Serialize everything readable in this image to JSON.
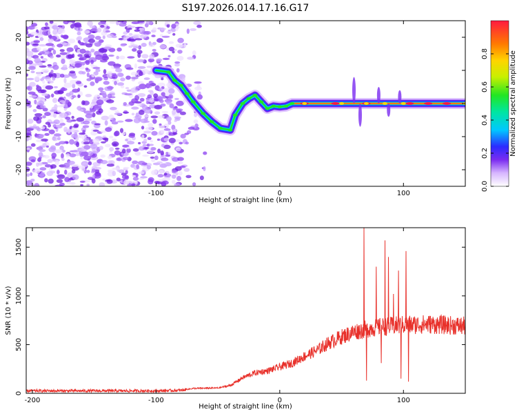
{
  "title": "S197.2026.014.17.16.G17",
  "colors": {
    "snr_line": "#e8302a",
    "axes": "#000000",
    "scatter_purple": "#7a2cf0"
  },
  "chart_data": [
    {
      "type": "heatmap",
      "name": "spectrogram",
      "xlabel": "Height of straight line (km)",
      "ylabel": "Frequency (Hz)",
      "xlim": [
        -205,
        150
      ],
      "ylim": [
        -25,
        25
      ],
      "xticks": [
        "-200",
        "-100",
        "0",
        "100"
      ],
      "yticks": [
        "-20",
        "-10",
        "0",
        "10",
        "20"
      ],
      "colorbar": {
        "label": "Normalized spectral amplitude",
        "range": [
          0,
          1
        ],
        "ticks": [
          "0.0",
          "0.2",
          "0.4",
          "0.6",
          "0.8"
        ]
      },
      "trace": [
        [
          -100,
          10
        ],
        [
          -90,
          9.5
        ],
        [
          -85,
          7
        ],
        [
          -80,
          5.5
        ],
        [
          -75,
          3
        ],
        [
          -70,
          0.5
        ],
        [
          -62,
          -3
        ],
        [
          -55,
          -5.5
        ],
        [
          -48,
          -7.5
        ],
        [
          -40,
          -8
        ],
        [
          -36,
          -3.5
        ],
        [
          -30,
          0
        ],
        [
          -25,
          1.5
        ],
        [
          -20,
          2.5
        ],
        [
          -15,
          0.5
        ],
        [
          -10,
          -1.5
        ],
        [
          -5,
          -0.8
        ],
        [
          0,
          -1
        ],
        [
          5,
          -0.8
        ],
        [
          10,
          0
        ],
        [
          20,
          0
        ],
        [
          50,
          0
        ],
        [
          70,
          0
        ],
        [
          85,
          0
        ],
        [
          100,
          0
        ],
        [
          150,
          0
        ]
      ]
    },
    {
      "type": "line",
      "name": "snr",
      "xlabel": "Height of straight line (km)",
      "ylabel": "SNR (10 * v/v)",
      "xlim": [
        -205,
        150
      ],
      "ylim": [
        0,
        1700
      ],
      "xticks": [
        "-200",
        "-100",
        "0",
        "100"
      ],
      "yticks": [
        "0",
        "500",
        "1000",
        "1500"
      ],
      "envelope": [
        [
          -205,
          25
        ],
        [
          -150,
          25
        ],
        [
          -100,
          25
        ],
        [
          -80,
          30
        ],
        [
          -70,
          50
        ],
        [
          -50,
          55
        ],
        [
          -40,
          80
        ],
        [
          -30,
          160
        ],
        [
          -20,
          210
        ],
        [
          -10,
          230
        ],
        [
          0,
          270
        ],
        [
          10,
          310
        ],
        [
          20,
          380
        ],
        [
          30,
          440
        ],
        [
          40,
          520
        ],
        [
          50,
          580
        ],
        [
          60,
          630
        ],
        [
          70,
          660
        ],
        [
          80,
          680
        ],
        [
          90,
          690
        ],
        [
          100,
          700
        ],
        [
          120,
          710
        ],
        [
          150,
          690
        ]
      ],
      "spikes": [
        [
          68,
          1700
        ],
        [
          70,
          130
        ],
        [
          78,
          1300
        ],
        [
          82,
          310
        ],
        [
          85,
          1570
        ],
        [
          88,
          1400
        ],
        [
          92,
          1020
        ],
        [
          96,
          1260
        ],
        [
          98,
          150
        ],
        [
          102,
          1460
        ],
        [
          104,
          120
        ]
      ]
    }
  ]
}
